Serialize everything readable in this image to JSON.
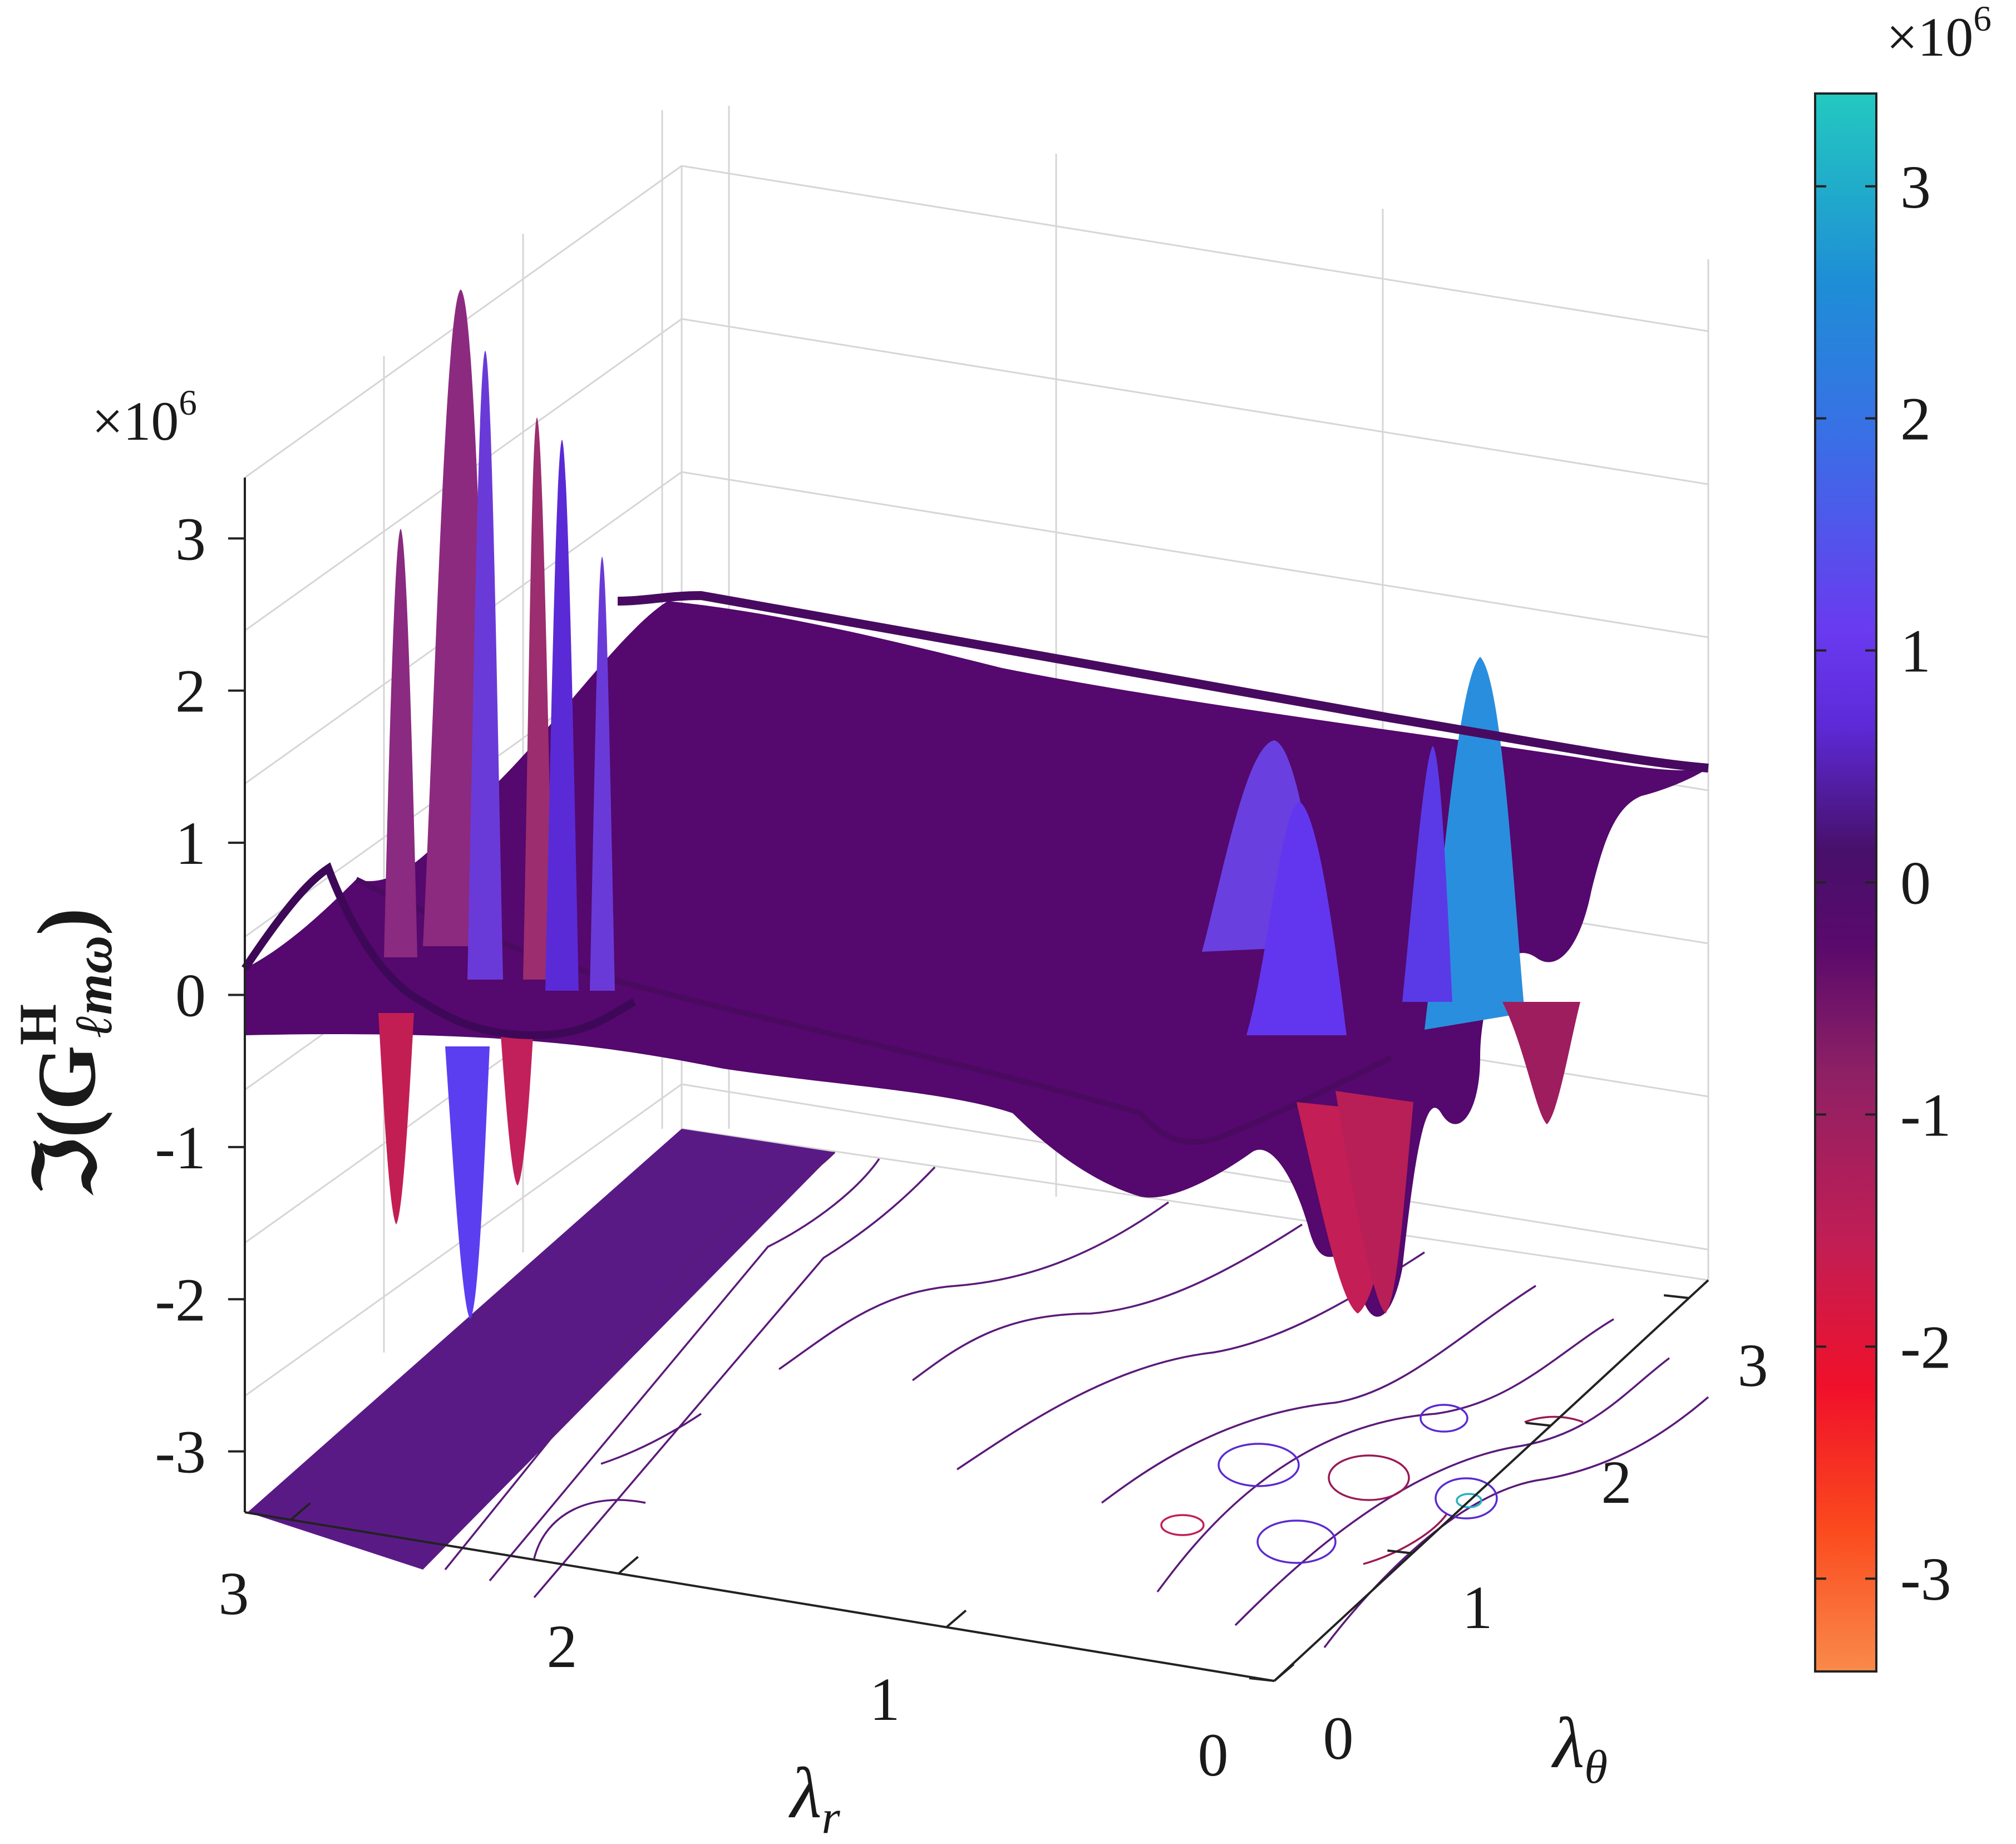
{
  "chart_data": {
    "type": "surface",
    "title": "",
    "xlabel": "λr",
    "ylabel": "λθ",
    "zlabel": "ℑ(G^H_ℓmω)",
    "z_multiplier": "×10",
    "z_multiplier_exp": "6",
    "colorbar_multiplier": "×10",
    "colorbar_multiplier_exp": "6",
    "xlim": [
      0,
      3.14
    ],
    "ylim": [
      0,
      3.14
    ],
    "zlim": [
      -3.4,
      3.4
    ],
    "x_ticks": [
      "0",
      "1",
      "2",
      "3"
    ],
    "y_ticks": [
      "0",
      "1",
      "2",
      "3"
    ],
    "z_ticks": [
      "-3",
      "-2",
      "-1",
      "0",
      "1",
      "2",
      "3"
    ],
    "z_tick_values": [
      -3,
      -2,
      -1,
      0,
      1,
      2,
      3
    ],
    "colorbar_ticks": [
      "-3",
      "-2",
      "-1",
      "0",
      "1",
      "2",
      "3"
    ],
    "colorbar_tick_values": [
      -3,
      -2,
      -1,
      0,
      1,
      2,
      3
    ],
    "colorbar_range": [
      -3.4,
      3.4
    ],
    "colormap": [
      "#f98a4a",
      "#fb4a1e",
      "#f0102a",
      "#c21e54",
      "#8e2065",
      "#5a0a6c",
      "#47106a",
      "#5d2ad8",
      "#6a3af0",
      "#3a6ee6",
      "#1e8ed6",
      "#23c9c0"
    ],
    "grid": true,
    "contour_projection": true,
    "x_grid": [
      0,
      0.157,
      0.314,
      0.471,
      0.628,
      0.785,
      0.942,
      1.1,
      1.257,
      1.414,
      1.571,
      1.728,
      1.885,
      2.042,
      2.199,
      2.356,
      2.513,
      2.67,
      2.827,
      2.984,
      3.14
    ],
    "y_grid": [
      0,
      0.157,
      0.314,
      0.471,
      0.628,
      0.785,
      0.942,
      1.1,
      1.257,
      1.414,
      1.571,
      1.728,
      1.885,
      2.042,
      2.199,
      2.356,
      2.513,
      2.67,
      2.827,
      2.984,
      3.14
    ],
    "notable_values": {
      "peak_large_lambda_r": 3.2,
      "trough_large_lambda_r": -2.9,
      "peak_small_lambda_r": 1.9,
      "trough_small_lambda_r": -2.3,
      "plateau": 0.05
    },
    "ridges": [
      {
        "lr": 3.02,
        "lt": 0.55,
        "amp": 2.8
      },
      {
        "lr": 2.86,
        "lt": 0.55,
        "amp": -2.6
      },
      {
        "lr": 2.7,
        "lt": 0.55,
        "amp": 2.2
      },
      {
        "lr": 2.55,
        "lt": 0.55,
        "amp": -1.7
      },
      {
        "lr": 2.4,
        "lt": 0.55,
        "amp": 1.1
      },
      {
        "lr": 3.02,
        "lt": 1.9,
        "amp": 3.2
      },
      {
        "lr": 2.86,
        "lt": 1.9,
        "amp": -2.9
      },
      {
        "lr": 2.7,
        "lt": 1.9,
        "amp": 2.6
      },
      {
        "lr": 2.55,
        "lt": 1.9,
        "amp": -1.9
      },
      {
        "lr": 2.4,
        "lt": 1.9,
        "amp": 1.4
      },
      {
        "lr": 0.25,
        "lt": 2.55,
        "amp": 1.9
      },
      {
        "lr": 0.25,
        "lt": 2.2,
        "amp": -1.6
      },
      {
        "lr": 0.55,
        "lt": 1.9,
        "amp": 1.6
      },
      {
        "lr": 0.45,
        "lt": 1.35,
        "amp": -2.3
      },
      {
        "lr": 0.35,
        "lt": 0.95,
        "amp": 1.3
      },
      {
        "lr": 0.7,
        "lt": 0.85,
        "amp": -0.8
      },
      {
        "lr": 0.9,
        "lt": 1.2,
        "amp": 0.7
      },
      {
        "lr": 0.15,
        "lt": 2.95,
        "amp": 0.3
      }
    ]
  }
}
